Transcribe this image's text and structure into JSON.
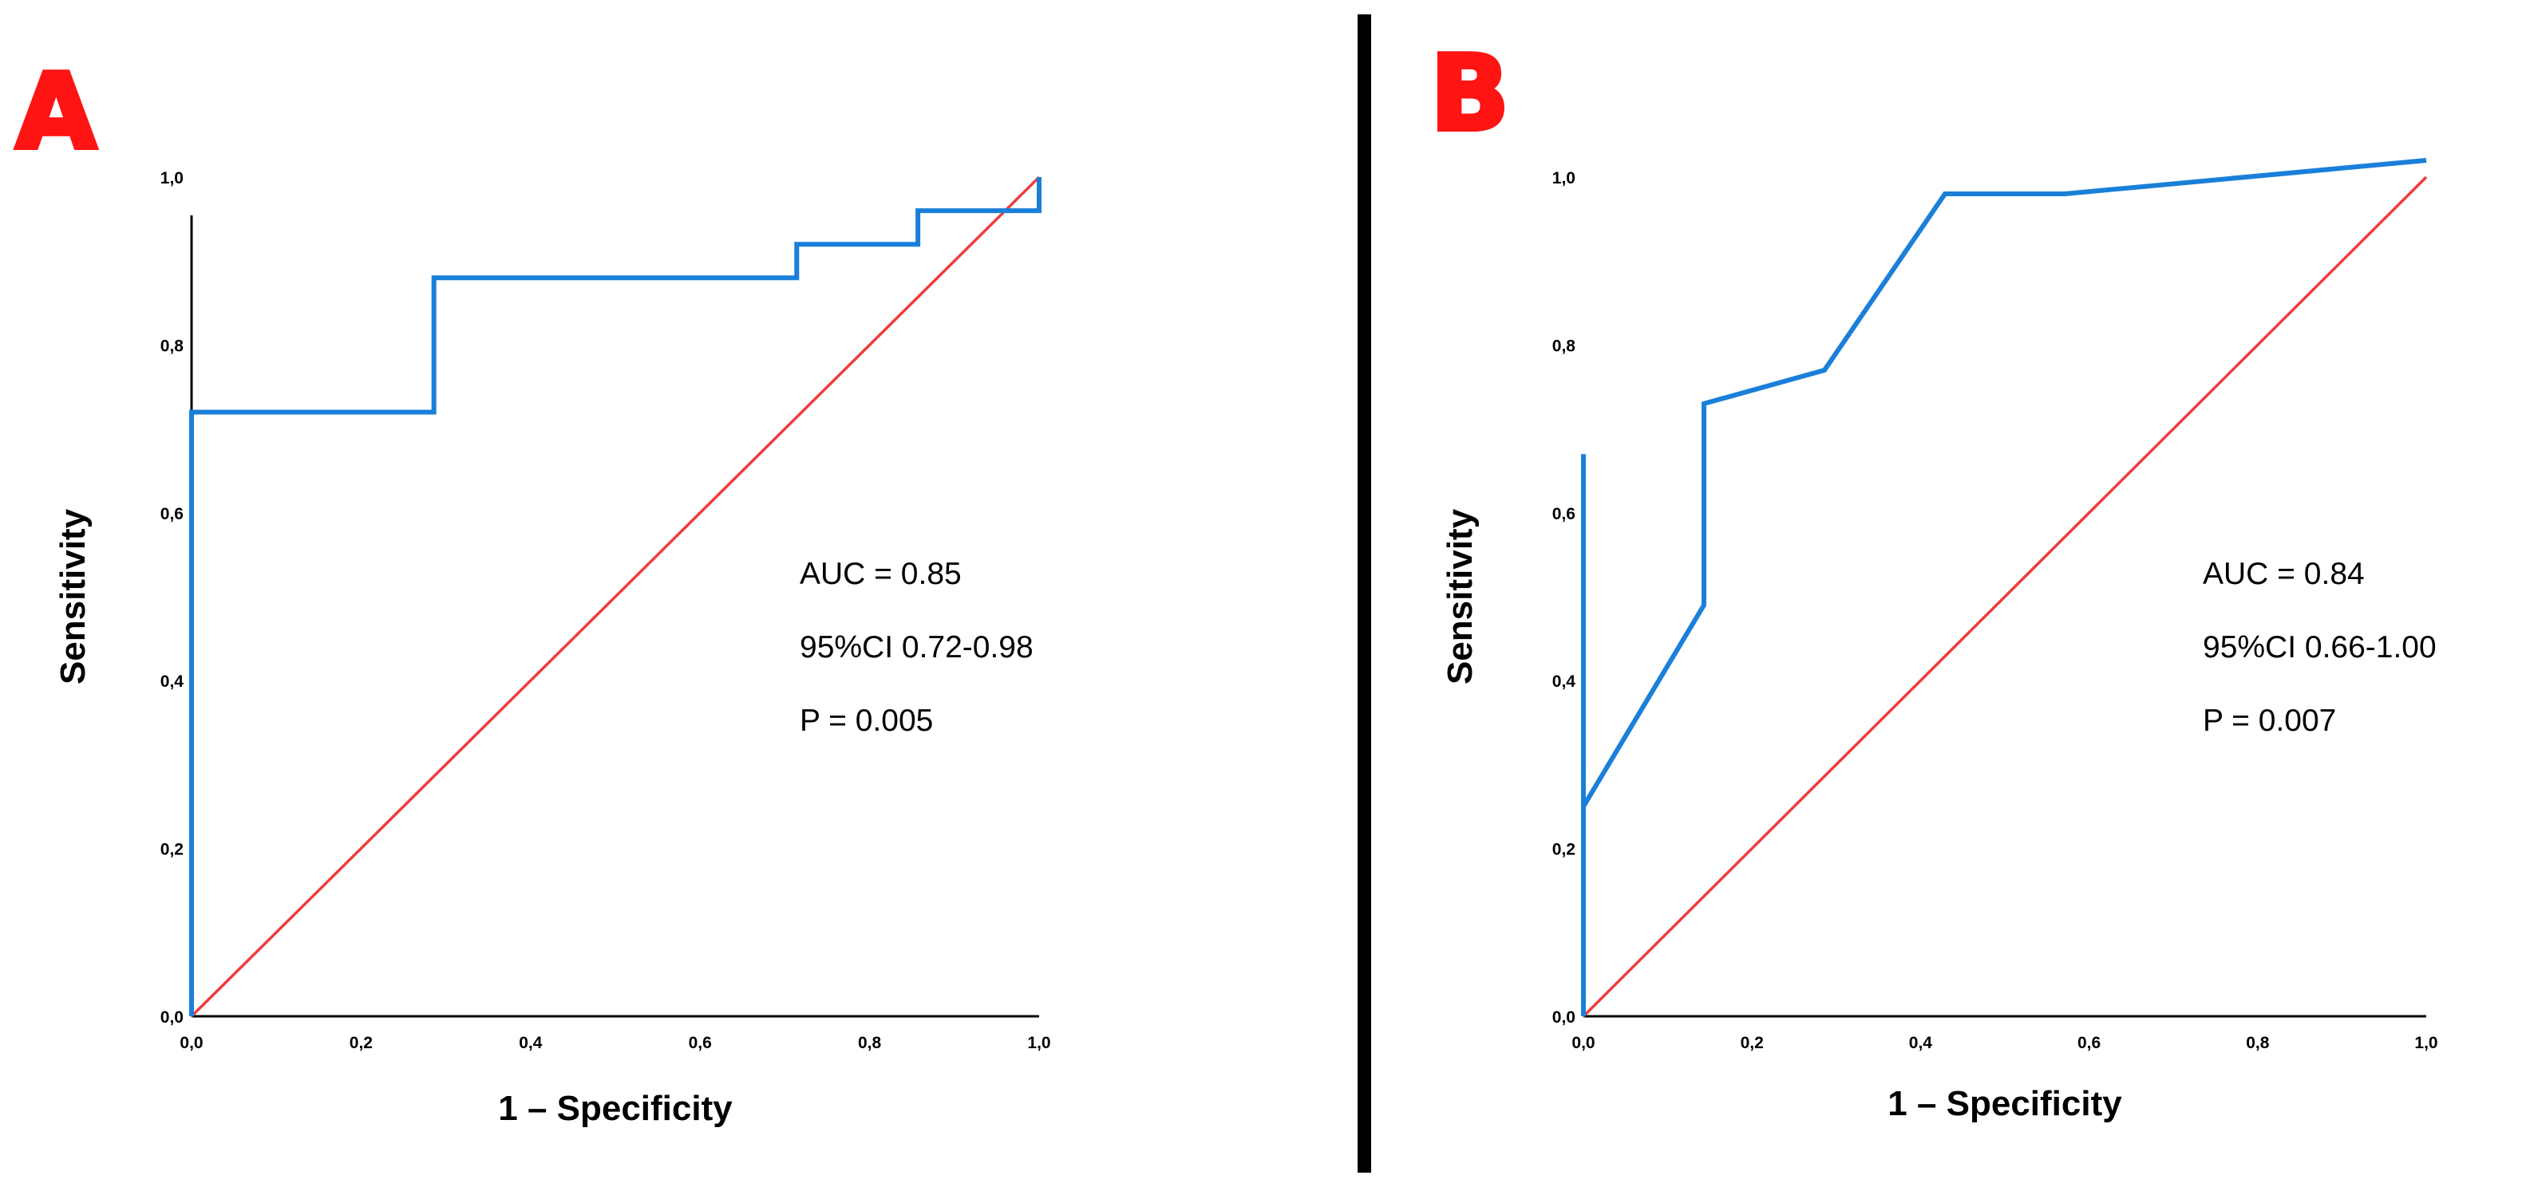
{
  "colors": {
    "roc_curve": "#1a7fd9",
    "reference_line": "#f03c3c",
    "panel_letter": "#ff1414",
    "axis": "#000000"
  },
  "chart_data": [
    {
      "type": "line",
      "panel_label": "A",
      "xlabel": "1 – Specificity",
      "ylabel": "Sensitivity",
      "xlim": [
        0,
        1
      ],
      "ylim": [
        0,
        1
      ],
      "x_ticks": [
        "0,0",
        "0,2",
        "0,4",
        "0,6",
        "0,8",
        "1,0"
      ],
      "y_ticks": [
        "0,0",
        "0,2",
        "0,4",
        "0,6",
        "0,8",
        "1,0"
      ],
      "grid": false,
      "series": [
        {
          "name": "ROC curve",
          "x": [
            0,
            0,
            0.286,
            0.286,
            0.714,
            0.714,
            0.857,
            0.857,
            1.0,
            1.0
          ],
          "y": [
            0,
            0.72,
            0.72,
            0.88,
            0.88,
            0.92,
            0.92,
            0.96,
            0.96,
            1.0
          ]
        },
        {
          "name": "Reference line",
          "x": [
            0,
            1
          ],
          "y": [
            0,
            1
          ]
        }
      ],
      "annotations": [
        "AUC = 0.85",
        "95%CI 0.72-0.98",
        "P = 0.005"
      ]
    },
    {
      "type": "line",
      "panel_label": "B",
      "xlabel": "1 – Specificity",
      "ylabel": "Sensitivity",
      "xlim": [
        0,
        1
      ],
      "ylim": [
        0,
        1
      ],
      "x_ticks": [
        "0,0",
        "0,2",
        "0,4",
        "0,6",
        "0,8",
        "1,0"
      ],
      "y_ticks": [
        "0,0",
        "0,2",
        "0,4",
        "0,6",
        "0,8",
        "1,0"
      ],
      "grid": false,
      "series": [
        {
          "name": "ROC curve",
          "x": [
            0,
            0,
            0,
            0.143,
            0.143,
            0.286,
            0.429,
            0.571,
            1.0
          ],
          "y": [
            0.67,
            0.0,
            0.25,
            0.49,
            0.73,
            0.77,
            0.98,
            0.98,
            1.02
          ]
        },
        {
          "name": "Reference line",
          "x": [
            0,
            1
          ],
          "y": [
            0,
            1
          ]
        }
      ],
      "annotations": [
        "AUC = 0.84",
        "95%CI 0.66-1.00",
        "P = 0.007"
      ]
    }
  ]
}
